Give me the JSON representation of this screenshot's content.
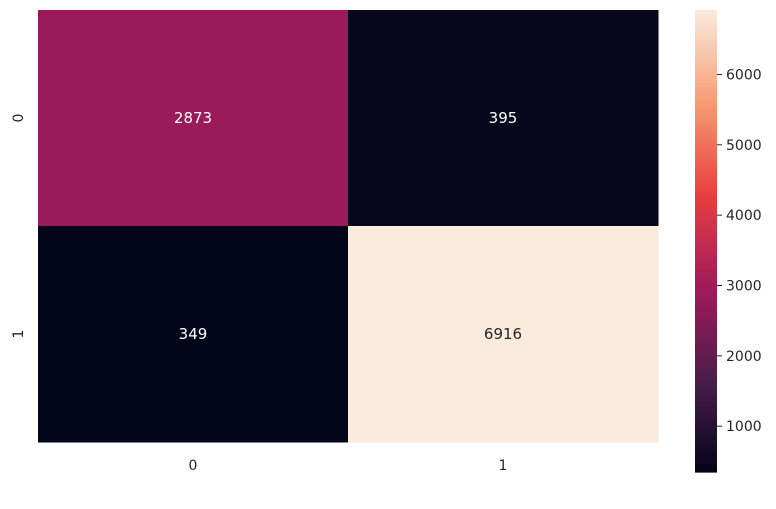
{
  "chart_data": {
    "type": "heatmap",
    "title": "",
    "xlabel": "",
    "ylabel": "",
    "x_categories": [
      "0",
      "1"
    ],
    "y_categories": [
      "0",
      "1"
    ],
    "values": [
      [
        2873,
        395
      ],
      [
        349,
        6916
      ]
    ],
    "colorbar": {
      "ticks": [
        1000,
        2000,
        3000,
        4000,
        5000,
        6000
      ],
      "vmin": 349,
      "vmax": 6916,
      "colormap": "rocket",
      "colormap_stops": [
        "#03051a",
        "#4c1d4b",
        "#a11a5b",
        "#e83f3f",
        "#f69c73",
        "#faebdd"
      ]
    },
    "annotation_colors": {
      "dark_cell_text": "#ffffff",
      "light_cell_text": "#262626"
    }
  }
}
